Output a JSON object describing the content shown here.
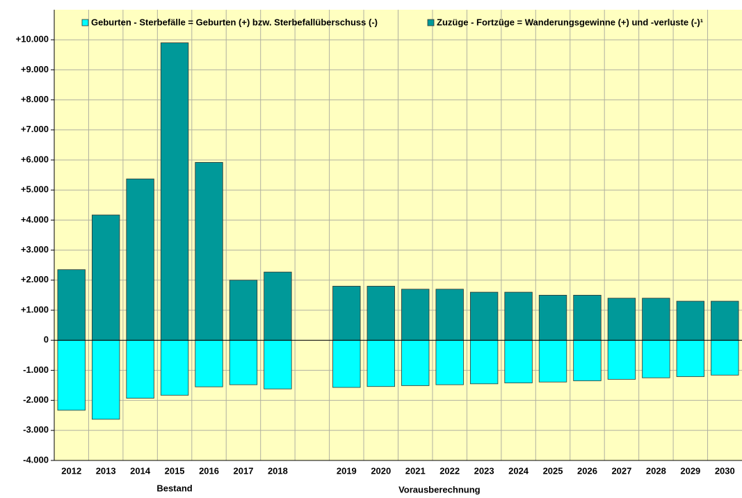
{
  "chart_data": {
    "type": "bar",
    "stacked": true,
    "categories": [
      "2012",
      "2013",
      "2014",
      "2015",
      "2016",
      "2017",
      "2018",
      null,
      "2019",
      "2020",
      "2021",
      "2022",
      "2023",
      "2024",
      "2025",
      "2026",
      "2027",
      "2028",
      "2029",
      "2030"
    ],
    "series": [
      {
        "name": "Geburten - Sterbefälle = Geburten (+) bzw. Sterbefallüberschuss (-)",
        "color": "#00ffff",
        "values": [
          -2330,
          -2630,
          -1930,
          -1830,
          -1550,
          -1480,
          -1620,
          null,
          -1570,
          -1540,
          -1510,
          -1480,
          -1450,
          -1420,
          -1390,
          -1350,
          -1300,
          -1250,
          -1210,
          -1160
        ]
      },
      {
        "name": "Zuzüge - Fortzüge = Wanderungsgewinne (+) und -verluste (-)¹",
        "color": "#009999",
        "values": [
          2350,
          4170,
          5370,
          9900,
          5920,
          2000,
          2270,
          null,
          1800,
          1800,
          1700,
          1700,
          1600,
          1600,
          1500,
          1500,
          1400,
          1400,
          1300,
          1300
        ]
      }
    ],
    "annotations": [
      "Bestand",
      "Vorausberechnung"
    ],
    "ylim": [
      -4000,
      11000
    ],
    "yticks": [
      {
        "value": -4000,
        "label": "-4.000"
      },
      {
        "value": -3000,
        "label": "-3.000"
      },
      {
        "value": -2000,
        "label": "-2.000"
      },
      {
        "value": -1000,
        "label": "-1.000"
      },
      0,
      {
        "value": 1000,
        "label": "+1.000"
      },
      {
        "value": 2000,
        "label": "+2.000"
      },
      {
        "value": 3000,
        "label": "+3.000"
      },
      {
        "value": 4000,
        "label": "+4.000"
      },
      {
        "value": 5000,
        "label": "+5.000"
      },
      {
        "value": 6000,
        "label": "+6.000"
      },
      {
        "value": 7000,
        "label": "+7.000"
      },
      {
        "value": 8000,
        "label": "+8.000"
      },
      {
        "value": 9000,
        "label": "+9.000"
      },
      {
        "value": 10000,
        "label": "+10.000"
      }
    ],
    "grid": true,
    "legend": "top"
  }
}
